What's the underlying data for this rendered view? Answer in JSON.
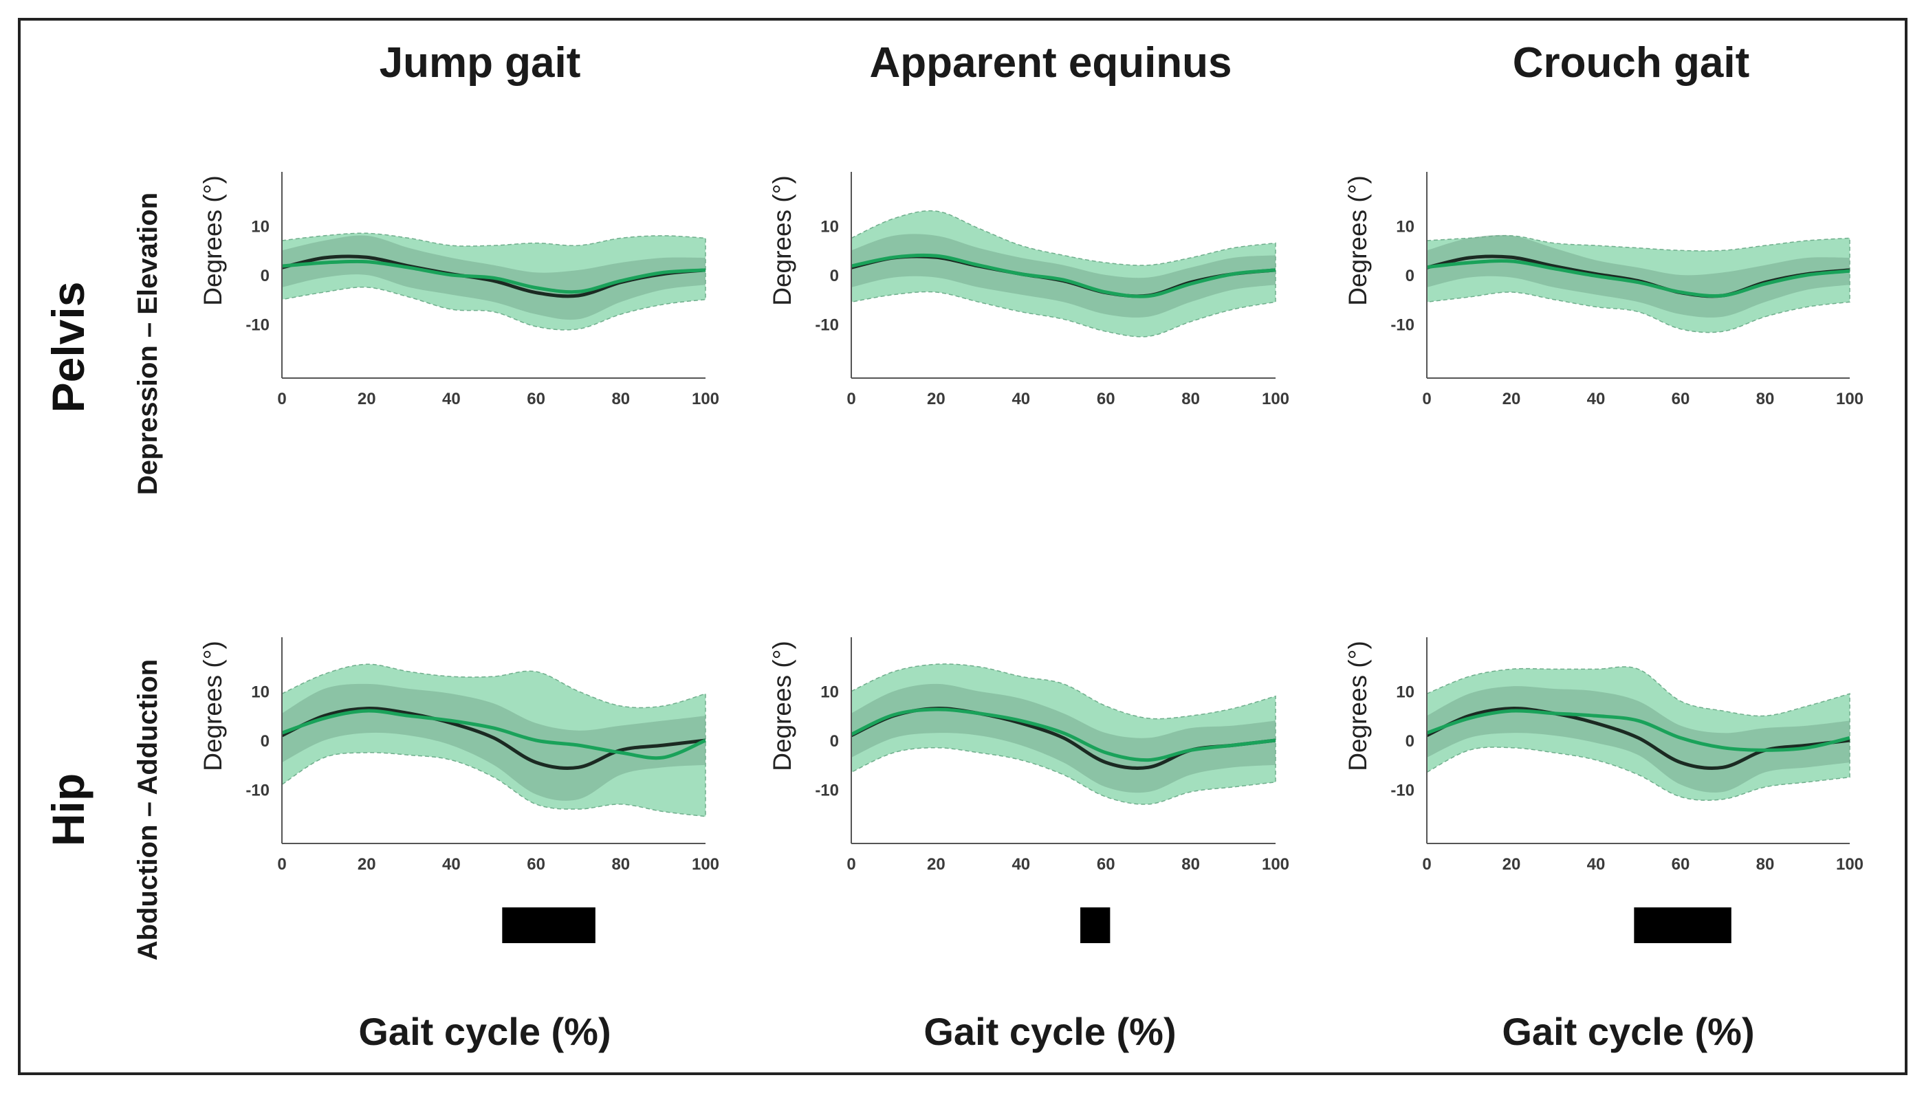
{
  "chart_data": {
    "type": "line",
    "columns": [
      "Jump gait",
      "Apparent equinus",
      "Crouch gait"
    ],
    "rows": [
      {
        "name": "Pelvis",
        "axis_label": "Depression – Elevation"
      },
      {
        "name": "Hip",
        "axis_label": "Abduction – Adduction"
      }
    ],
    "ylabel": "Degrees (°)",
    "xlabel": "Gait cycle (%)",
    "x_ticks": [
      0,
      20,
      40,
      60,
      80,
      100
    ],
    "y_ticks": [
      10,
      0,
      -10
    ],
    "xlim": [
      0,
      100
    ],
    "ylim": [
      -21,
      21
    ],
    "grid": false,
    "colors": {
      "outer_band": "#93d9b3",
      "inner_band": "#78ab8f",
      "group_line": "#1aa25a",
      "reference_line": "#1b2a22",
      "significance_bar": "#000000"
    },
    "panels": [
      {
        "row": 0,
        "col": 0,
        "x": [
          0,
          10,
          20,
          30,
          40,
          50,
          60,
          70,
          80,
          90,
          100
        ],
        "reference_mean": [
          1.5,
          3.5,
          3.6,
          1.8,
          0.2,
          -1.2,
          -3.6,
          -4.2,
          -1.5,
          0.2,
          1.0
        ],
        "group_mean": [
          1.8,
          2.5,
          2.7,
          1.5,
          0.0,
          -0.6,
          -2.6,
          -3.4,
          -1.2,
          0.5,
          1.0
        ],
        "outer_upper": [
          7.0,
          8.0,
          8.5,
          7.5,
          6.0,
          6.0,
          6.5,
          6.0,
          7.5,
          8.0,
          7.5
        ],
        "outer_lower": [
          -5.0,
          -3.5,
          -2.5,
          -4.5,
          -7.0,
          -7.5,
          -10.5,
          -11.0,
          -8.0,
          -6.0,
          -5.0
        ],
        "inner_upper": [
          5.0,
          7.0,
          8.0,
          5.5,
          3.5,
          2.0,
          0.5,
          1.0,
          2.5,
          3.5,
          3.5
        ],
        "inner_lower": [
          -2.5,
          -0.5,
          0.0,
          -2.5,
          -4.0,
          -5.5,
          -8.0,
          -9.0,
          -5.5,
          -3.0,
          -2.0
        ],
        "significance_interval": null
      },
      {
        "row": 0,
        "col": 1,
        "x": [
          0,
          10,
          20,
          30,
          40,
          50,
          60,
          70,
          80,
          90,
          100
        ],
        "reference_mean": [
          1.5,
          3.5,
          3.6,
          1.8,
          0.2,
          -1.2,
          -3.6,
          -4.2,
          -1.5,
          0.2,
          1.0
        ],
        "group_mean": [
          1.8,
          3.6,
          3.9,
          2.0,
          0.2,
          -1.0,
          -3.5,
          -4.3,
          -1.8,
          0.2,
          1.0
        ],
        "outer_upper": [
          7.5,
          11.5,
          13.0,
          9.5,
          6.0,
          4.0,
          2.5,
          2.0,
          3.5,
          5.5,
          6.5
        ],
        "outer_lower": [
          -5.5,
          -4.0,
          -3.5,
          -5.5,
          -7.5,
          -9.0,
          -11.5,
          -12.5,
          -9.5,
          -7.0,
          -5.5
        ],
        "inner_upper": [
          5.0,
          8.0,
          8.0,
          5.5,
          3.5,
          2.0,
          0.0,
          -0.5,
          1.5,
          3.5,
          4.0
        ],
        "inner_lower": [
          -2.5,
          -0.5,
          -0.5,
          -2.5,
          -4.0,
          -5.5,
          -8.0,
          -8.5,
          -5.5,
          -3.0,
          -2.0
        ],
        "significance_interval": [
          54,
          60
        ]
      },
      {
        "row": 0,
        "col": 2,
        "x": [
          0,
          10,
          20,
          30,
          40,
          50,
          60,
          70,
          80,
          90,
          100
        ],
        "reference_mean": [
          1.5,
          3.5,
          3.6,
          1.8,
          0.2,
          -1.2,
          -3.6,
          -4.2,
          -1.5,
          0.2,
          1.0
        ],
        "group_mean": [
          1.6,
          2.5,
          2.8,
          1.3,
          -0.2,
          -1.5,
          -3.5,
          -4.2,
          -1.8,
          0.0,
          0.8
        ],
        "outer_upper": [
          7.0,
          7.5,
          8.0,
          6.5,
          6.0,
          5.5,
          5.0,
          5.0,
          6.0,
          7.0,
          7.5
        ],
        "outer_lower": [
          -5.5,
          -4.5,
          -3.5,
          -5.0,
          -6.5,
          -7.5,
          -11.0,
          -11.5,
          -8.5,
          -6.5,
          -5.5
        ],
        "inner_upper": [
          5.0,
          7.5,
          8.0,
          5.5,
          3.0,
          1.5,
          0.0,
          0.5,
          2.0,
          3.5,
          3.5
        ],
        "inner_lower": [
          -2.5,
          -0.5,
          -0.5,
          -2.5,
          -4.0,
          -5.5,
          -8.0,
          -8.5,
          -5.5,
          -3.0,
          -2.0
        ],
        "significance_interval": [
          49,
          72
        ]
      },
      {
        "row": 1,
        "col": 0,
        "x": [
          0,
          10,
          20,
          30,
          40,
          50,
          60,
          70,
          80,
          90,
          100
        ],
        "reference_mean": [
          1.0,
          5.0,
          6.5,
          5.5,
          3.5,
          0.5,
          -4.5,
          -5.5,
          -2.0,
          -1.0,
          0.0
        ],
        "group_mean": [
          1.5,
          4.5,
          6.0,
          5.0,
          4.0,
          2.5,
          0.0,
          -1.0,
          -2.5,
          -3.5,
          0.0
        ],
        "outer_upper": [
          9.5,
          13.5,
          15.5,
          14.0,
          13.0,
          13.0,
          14.0,
          10.0,
          7.0,
          7.0,
          9.5
        ],
        "outer_lower": [
          -9.0,
          -3.5,
          -2.5,
          -3.0,
          -4.0,
          -7.5,
          -13.0,
          -14.0,
          -13.0,
          -14.5,
          -15.5
        ],
        "inner_upper": [
          5.5,
          10.5,
          11.5,
          10.5,
          9.5,
          7.5,
          3.5,
          2.0,
          3.0,
          4.0,
          5.0
        ],
        "inner_lower": [
          -4.5,
          0.0,
          1.5,
          1.0,
          -1.0,
          -5.0,
          -11.0,
          -12.0,
          -7.0,
          -5.5,
          -5.0
        ],
        "significance_interval": [
          52,
          74
        ]
      },
      {
        "row": 1,
        "col": 1,
        "x": [
          0,
          10,
          20,
          30,
          40,
          50,
          60,
          70,
          80,
          90,
          100
        ],
        "reference_mean": [
          1.0,
          5.0,
          6.5,
          5.5,
          3.5,
          0.5,
          -4.5,
          -5.5,
          -2.0,
          -1.0,
          0.0
        ],
        "group_mean": [
          1.2,
          5.2,
          6.3,
          5.5,
          4.0,
          1.5,
          -2.5,
          -4.0,
          -2.0,
          -1.0,
          0.0
        ],
        "outer_upper": [
          10.0,
          14.0,
          15.5,
          15.0,
          13.0,
          11.5,
          7.0,
          4.5,
          5.0,
          6.5,
          9.0
        ],
        "outer_lower": [
          -6.5,
          -2.5,
          -1.5,
          -2.5,
          -4.0,
          -7.0,
          -11.5,
          -13.0,
          -10.5,
          -9.5,
          -8.5
        ],
        "inner_upper": [
          5.5,
          10.0,
          11.5,
          10.0,
          8.5,
          5.5,
          1.5,
          0.5,
          2.5,
          3.0,
          4.0
        ],
        "inner_lower": [
          -3.5,
          0.5,
          1.5,
          1.0,
          -1.0,
          -4.5,
          -9.5,
          -10.5,
          -7.0,
          -5.5,
          -5.0
        ],
        "significance_interval": [
          54,
          61
        ]
      },
      {
        "row": 1,
        "col": 2,
        "x": [
          0,
          10,
          20,
          30,
          40,
          50,
          60,
          70,
          80,
          90,
          100
        ],
        "reference_mean": [
          1.0,
          5.0,
          6.5,
          5.5,
          3.5,
          0.5,
          -4.5,
          -5.5,
          -2.0,
          -1.0,
          0.0
        ],
        "group_mean": [
          1.5,
          4.5,
          6.0,
          5.5,
          5.0,
          4.0,
          0.5,
          -1.5,
          -2.0,
          -1.5,
          0.5
        ],
        "outer_upper": [
          9.5,
          13.0,
          14.5,
          14.5,
          14.5,
          14.5,
          8.0,
          6.0,
          5.0,
          7.0,
          9.5
        ],
        "outer_lower": [
          -6.5,
          -2.0,
          -1.5,
          -2.5,
          -4.0,
          -7.0,
          -11.5,
          -12.0,
          -9.5,
          -8.5,
          -7.5
        ],
        "inner_upper": [
          5.0,
          9.5,
          11.0,
          10.5,
          10.0,
          8.0,
          3.0,
          1.5,
          2.5,
          3.0,
          4.0
        ],
        "inner_lower": [
          -3.5,
          0.5,
          1.5,
          1.0,
          -0.5,
          -3.0,
          -9.0,
          -10.5,
          -6.5,
          -5.5,
          -4.5
        ],
        "significance_interval": null
      }
    ]
  }
}
